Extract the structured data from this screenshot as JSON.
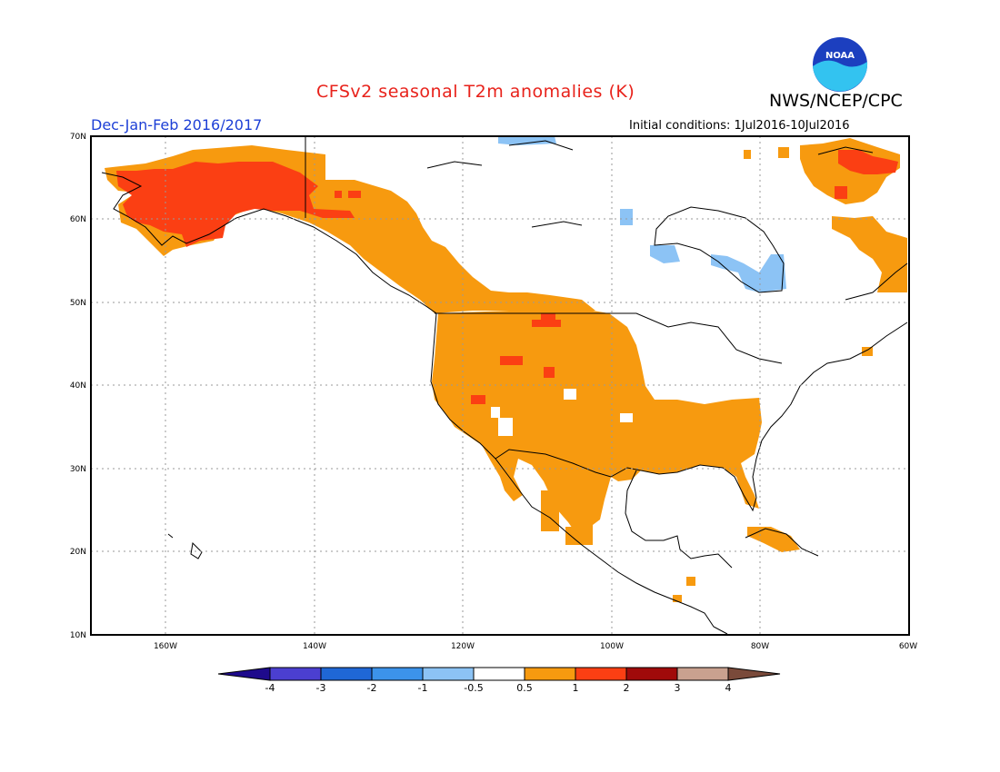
{
  "title": "CFSv2 seasonal T2m anomalies (K)",
  "agency": "NWS/NCEP/CPC",
  "logo_text": "NOAA",
  "season": "Dec-Jan-Feb 2016/2017",
  "initial_conditions": "Initial conditions: 1Jul2016-10Jul2016",
  "lat_labels": [
    "70N",
    "60N",
    "50N",
    "40N",
    "30N",
    "20N",
    "10N"
  ],
  "lon_labels": [
    "160W",
    "140W",
    "120W",
    "100W",
    "80W",
    "60W"
  ],
  "colorbar": {
    "labels": [
      "-4",
      "-3",
      "-2",
      "-1",
      "-0.5",
      "0.5",
      "1",
      "2",
      "3",
      "4"
    ],
    "colors": [
      "#1e0a8c",
      "#4b3fd0",
      "#1f67d6",
      "#3c93ea",
      "#8cc3f5",
      "#ffffff",
      "#f79a0f",
      "#fb3f13",
      "#a00a0a",
      "#c9a18f",
      "#7a4a3a"
    ]
  },
  "colors": {
    "warm_05_1": "#f79a0f",
    "warm_1_2": "#fb3f13",
    "cool_05_1": "#8cc3f5"
  }
}
